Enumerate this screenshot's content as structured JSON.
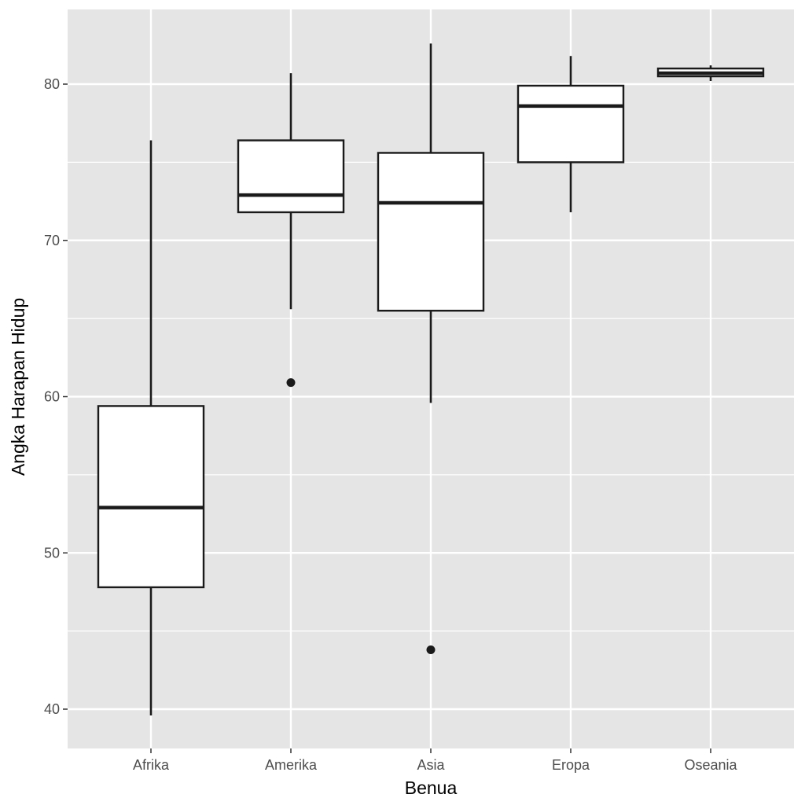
{
  "chart_data": {
    "type": "boxplot",
    "title": "",
    "xlabel": "Benua",
    "ylabel": "Angka Harapan Hidup",
    "categories": [
      "Afrika",
      "Amerika",
      "Asia",
      "Eropa",
      "Oseania"
    ],
    "boxes": [
      {
        "category": "Afrika",
        "whisker_low": 39.6,
        "q1": 47.8,
        "median": 52.9,
        "q3": 59.4,
        "whisker_high": 76.4,
        "outliers": []
      },
      {
        "category": "Amerika",
        "whisker_low": 65.6,
        "q1": 71.8,
        "median": 72.9,
        "q3": 76.4,
        "whisker_high": 80.7,
        "outliers": [
          60.9
        ]
      },
      {
        "category": "Asia",
        "whisker_low": 59.6,
        "q1": 65.5,
        "median": 72.4,
        "q3": 75.6,
        "whisker_high": 82.6,
        "outliers": [
          43.8
        ]
      },
      {
        "category": "Eropa",
        "whisker_low": 71.8,
        "q1": 75.0,
        "median": 78.6,
        "q3": 79.9,
        "whisker_high": 81.8,
        "outliers": []
      },
      {
        "category": "Oseania",
        "whisker_low": 80.2,
        "q1": 80.5,
        "median": 80.7,
        "q3": 81.0,
        "whisker_high": 81.2,
        "outliers": []
      }
    ],
    "yticks": [
      40,
      50,
      60,
      70,
      80
    ],
    "ylim": [
      37.5,
      84.8
    ],
    "grid": true,
    "legend": "none",
    "colors": {
      "panel_background": "#e5e5e5",
      "grid": "#ffffff",
      "box_fill": "#ffffff",
      "box_stroke": "#1a1a1a",
      "tick_text": "#4d4d4d",
      "title_text": "#000000"
    }
  }
}
